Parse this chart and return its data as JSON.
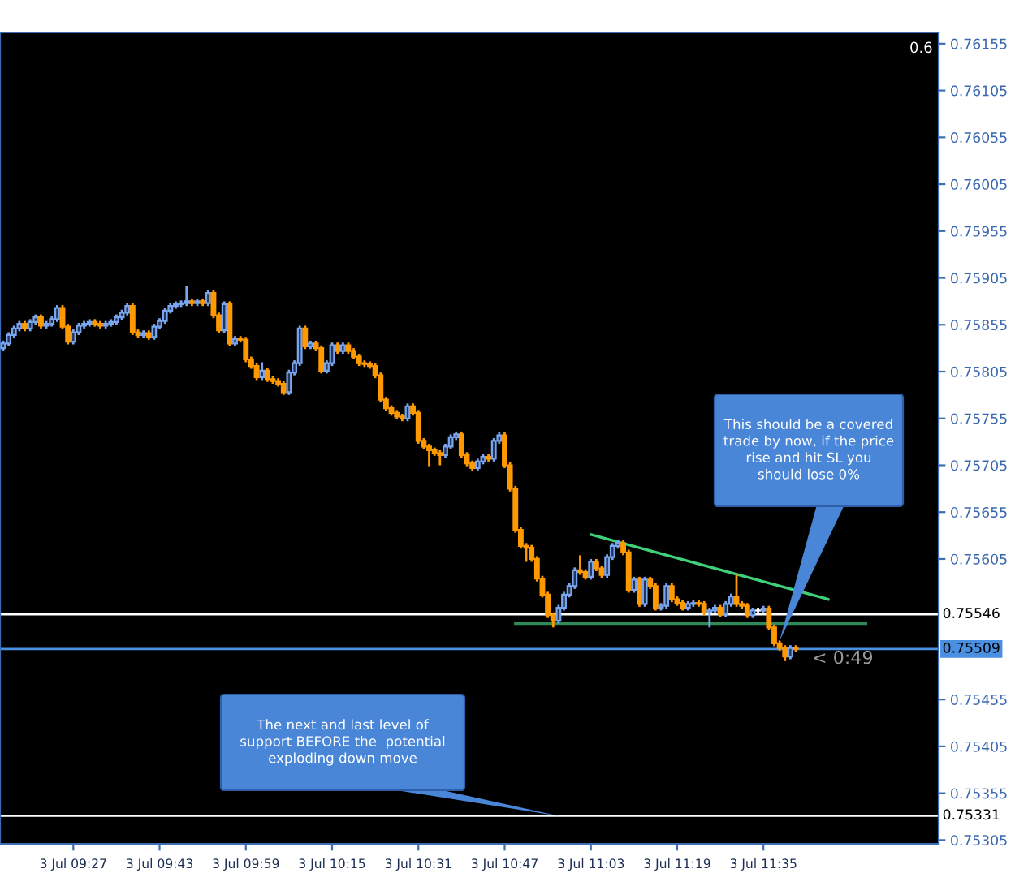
{
  "chart_data": {
    "type": "candlestick",
    "categories": [
      null,
      null,
      null,
      null,
      null,
      null,
      null,
      null,
      null,
      null,
      null,
      null,
      null,
      "3 Jul 09:27",
      null,
      null,
      null,
      null,
      null,
      null,
      null,
      null,
      null,
      null,
      null,
      null,
      null,
      null,
      null,
      "3 Jul 09:43",
      null,
      null,
      null,
      null,
      null,
      null,
      null,
      null,
      null,
      null,
      null,
      null,
      null,
      null,
      null,
      "3 Jul 09:59",
      null,
      null,
      null,
      null,
      null,
      null,
      null,
      null,
      null,
      null,
      null,
      null,
      null,
      null,
      null,
      "3 Jul 10:15",
      null,
      null,
      null,
      null,
      null,
      null,
      null,
      null,
      null,
      null,
      null,
      null,
      null,
      null,
      null,
      "3 Jul 10:31",
      null,
      null,
      null,
      null,
      null,
      null,
      null,
      null,
      null,
      null,
      null,
      null,
      null,
      null,
      null,
      "3 Jul 10:47",
      null,
      null,
      null,
      null,
      null,
      null,
      null,
      null,
      null,
      null,
      null,
      null,
      null,
      null,
      null,
      "3 Jul 11:03",
      null,
      null,
      null,
      null,
      null,
      null,
      null,
      null,
      null,
      null,
      null,
      null,
      null,
      null,
      null,
      "3 Jul 11:19",
      null,
      null,
      null,
      null,
      null,
      null,
      null,
      null,
      null,
      null,
      null,
      null,
      null,
      null,
      null,
      "3 Jul 11:35",
      null,
      null,
      null,
      null,
      null,
      null,
      null,
      null,
      null,
      null,
      null,
      null,
      null,
      null,
      null,
      null,
      null,
      null,
      null,
      null,
      null,
      null,
      null,
      null,
      null,
      null,
      null,
      null,
      null,
      null,
      null,
      null
    ],
    "ohlc": [
      [
        0.7583,
        0.75838,
        0.75827,
        0.75835
      ],
      [
        0.75835,
        0.75847,
        0.75832,
        0.75844
      ],
      [
        0.75844,
        0.75854,
        0.75841,
        0.75851
      ],
      [
        0.75851,
        0.75859,
        0.75848,
        0.75856
      ],
      [
        0.75856,
        0.75859,
        0.75848,
        0.75851
      ],
      [
        0.75851,
        0.75861,
        0.75848,
        0.75858
      ],
      [
        0.75858,
        0.75866,
        0.75855,
        0.75863
      ],
      [
        0.75863,
        0.75866,
        0.75851,
        0.75854
      ],
      [
        0.75854,
        0.75859,
        0.75851,
        0.75856
      ],
      [
        0.75856,
        0.75864,
        0.75853,
        0.75861
      ],
      [
        0.75861,
        0.75876,
        0.75858,
        0.75873
      ],
      [
        0.75873,
        0.75876,
        0.7585,
        0.75853
      ],
      [
        0.75853,
        0.75856,
        0.75834,
        0.75837
      ],
      [
        0.75837,
        0.7585,
        0.75834,
        0.75847
      ],
      [
        0.75847,
        0.75857,
        0.75844,
        0.75854
      ],
      [
        0.75854,
        0.75859,
        0.75851,
        0.75856
      ],
      [
        0.75856,
        0.75861,
        0.75853,
        0.75858
      ],
      [
        0.75858,
        0.75861,
        0.75853,
        0.75856
      ],
      [
        0.75856,
        0.75859,
        0.75851,
        0.75854
      ],
      [
        0.75854,
        0.75859,
        0.75851,
        0.75856
      ],
      [
        0.75856,
        0.75861,
        0.75853,
        0.75858
      ],
      [
        0.75858,
        0.75866,
        0.75855,
        0.75863
      ],
      [
        0.75863,
        0.75871,
        0.7586,
        0.75868
      ],
      [
        0.75868,
        0.75878,
        0.75865,
        0.75875
      ],
      [
        0.75875,
        0.75878,
        0.75844,
        0.75847
      ],
      [
        0.75847,
        0.7585,
        0.75841,
        0.75844
      ],
      [
        0.75844,
        0.75849,
        0.75841,
        0.75846
      ],
      [
        0.75846,
        0.75849,
        0.75839,
        0.75842
      ],
      [
        0.75842,
        0.75856,
        0.75839,
        0.75853
      ],
      [
        0.75853,
        0.75862,
        0.7585,
        0.75859
      ],
      [
        0.75859,
        0.75873,
        0.75856,
        0.7587
      ],
      [
        0.7587,
        0.75878,
        0.75867,
        0.75875
      ],
      [
        0.75875,
        0.7588,
        0.75872,
        0.75877
      ],
      [
        0.75877,
        0.75881,
        0.75874,
        0.75878
      ],
      [
        0.75878,
        0.75896,
        0.75875,
        0.7588
      ],
      [
        0.7588,
        0.75883,
        0.75875,
        0.75878
      ],
      [
        0.75878,
        0.75883,
        0.75875,
        0.7588
      ],
      [
        0.7588,
        0.75883,
        0.75875,
        0.75878
      ],
      [
        0.75878,
        0.75892,
        0.75875,
        0.75889
      ],
      [
        0.75889,
        0.75892,
        0.75862,
        0.75865
      ],
      [
        0.75865,
        0.75868,
        0.75846,
        0.75849
      ],
      [
        0.75849,
        0.7588,
        0.75846,
        0.75877
      ],
      [
        0.75877,
        0.7588,
        0.75832,
        0.75835
      ],
      [
        0.75835,
        0.75843,
        0.75832,
        0.7584
      ],
      [
        0.7584,
        0.75843,
        0.75836,
        0.75839
      ],
      [
        0.75839,
        0.75842,
        0.75815,
        0.75818
      ],
      [
        0.75818,
        0.75821,
        0.75808,
        0.75811
      ],
      [
        0.75811,
        0.75814,
        0.75796,
        0.75799
      ],
      [
        0.75799,
        0.75815,
        0.75796,
        0.75806
      ],
      [
        0.75806,
        0.75809,
        0.75794,
        0.75797
      ],
      [
        0.75797,
        0.758,
        0.75792,
        0.75795
      ],
      [
        0.75795,
        0.75798,
        0.75789,
        0.75792
      ],
      [
        0.75792,
        0.75795,
        0.7578,
        0.75783
      ],
      [
        0.75783,
        0.75807,
        0.7578,
        0.75804
      ],
      [
        0.75804,
        0.75817,
        0.75801,
        0.75814
      ],
      [
        0.75814,
        0.75854,
        0.75811,
        0.75851
      ],
      [
        0.75851,
        0.75854,
        0.75829,
        0.75832
      ],
      [
        0.75832,
        0.75838,
        0.75829,
        0.75835
      ],
      [
        0.75835,
        0.75838,
        0.75827,
        0.7583
      ],
      [
        0.7583,
        0.75833,
        0.75803,
        0.75806
      ],
      [
        0.75806,
        0.75817,
        0.75803,
        0.75814
      ],
      [
        0.75814,
        0.75836,
        0.75811,
        0.75833
      ],
      [
        0.75833,
        0.75836,
        0.75824,
        0.75827
      ],
      [
        0.75827,
        0.75836,
        0.75824,
        0.75833
      ],
      [
        0.75833,
        0.75836,
        0.75824,
        0.75827
      ],
      [
        0.75827,
        0.7583,
        0.75818,
        0.75821
      ],
      [
        0.75821,
        0.75824,
        0.75811,
        0.75814
      ],
      [
        0.75814,
        0.75817,
        0.7581,
        0.75813
      ],
      [
        0.75813,
        0.75816,
        0.75808,
        0.75811
      ],
      [
        0.75811,
        0.75814,
        0.75798,
        0.75801
      ],
      [
        0.75801,
        0.75804,
        0.75772,
        0.75775
      ],
      [
        0.75775,
        0.75778,
        0.75763,
        0.75766
      ],
      [
        0.75766,
        0.75769,
        0.75758,
        0.75761
      ],
      [
        0.75761,
        0.75764,
        0.75754,
        0.75757
      ],
      [
        0.75757,
        0.7576,
        0.75752,
        0.75755
      ],
      [
        0.75755,
        0.75771,
        0.75752,
        0.75768
      ],
      [
        0.75768,
        0.75771,
        0.75758,
        0.75761
      ],
      [
        0.75761,
        0.75764,
        0.75728,
        0.75731
      ],
      [
        0.75731,
        0.75734,
        0.75722,
        0.75725
      ],
      [
        0.75725,
        0.75728,
        0.75704,
        0.75721
      ],
      [
        0.75721,
        0.75724,
        0.75715,
        0.75718
      ],
      [
        0.75718,
        0.75721,
        0.75705,
        0.75716
      ],
      [
        0.75716,
        0.75728,
        0.75713,
        0.75725
      ],
      [
        0.75725,
        0.75738,
        0.75722,
        0.75735
      ],
      [
        0.75735,
        0.75741,
        0.75732,
        0.75738
      ],
      [
        0.75738,
        0.75741,
        0.75713,
        0.75716
      ],
      [
        0.75716,
        0.75719,
        0.75704,
        0.75707
      ],
      [
        0.75707,
        0.7571,
        0.75699,
        0.75702
      ],
      [
        0.75702,
        0.75712,
        0.75699,
        0.75709
      ],
      [
        0.75709,
        0.75717,
        0.75706,
        0.75714
      ],
      [
        0.75714,
        0.75717,
        0.75709,
        0.75712
      ],
      [
        0.75712,
        0.75734,
        0.75709,
        0.75731
      ],
      [
        0.75731,
        0.7574,
        0.75728,
        0.75737
      ],
      [
        0.75737,
        0.7574,
        0.75702,
        0.75705
      ],
      [
        0.75705,
        0.75708,
        0.75677,
        0.7568
      ],
      [
        0.7568,
        0.75683,
        0.75633,
        0.75636
      ],
      [
        0.75636,
        0.75639,
        0.75616,
        0.75619
      ],
      [
        0.75619,
        0.75622,
        0.75602,
        0.75617
      ],
      [
        0.75617,
        0.7562,
        0.75602,
        0.75605
      ],
      [
        0.75605,
        0.75608,
        0.75581,
        0.75584
      ],
      [
        0.75584,
        0.75587,
        0.75564,
        0.75567
      ],
      [
        0.75567,
        0.7557,
        0.75542,
        0.75545
      ],
      [
        0.75545,
        0.75548,
        0.75532,
        0.75539
      ],
      [
        0.75539,
        0.75556,
        0.75536,
        0.75553
      ],
      [
        0.75553,
        0.7557,
        0.7555,
        0.75567
      ],
      [
        0.75567,
        0.75579,
        0.75564,
        0.75576
      ],
      [
        0.75576,
        0.75596,
        0.75573,
        0.75593
      ],
      [
        0.75593,
        0.75609,
        0.75588,
        0.75591
      ],
      [
        0.75591,
        0.75594,
        0.75583,
        0.75586
      ],
      [
        0.75586,
        0.75605,
        0.75583,
        0.75602
      ],
      [
        0.75602,
        0.75605,
        0.75592,
        0.75595
      ],
      [
        0.75595,
        0.75598,
        0.75585,
        0.75588
      ],
      [
        0.75588,
        0.7561,
        0.75585,
        0.75607
      ],
      [
        0.75607,
        0.75622,
        0.75604,
        0.75619
      ],
      [
        0.75619,
        0.75625,
        0.75616,
        0.75622
      ],
      [
        0.75622,
        0.75625,
        0.75609,
        0.75612
      ],
      [
        0.75612,
        0.75615,
        0.75569,
        0.75572
      ],
      [
        0.75572,
        0.75586,
        0.75569,
        0.75583
      ],
      [
        0.75583,
        0.75586,
        0.75554,
        0.75557
      ],
      [
        0.75557,
        0.75586,
        0.75554,
        0.75583
      ],
      [
        0.75583,
        0.75586,
        0.75573,
        0.75576
      ],
      [
        0.75576,
        0.75579,
        0.7555,
        0.75553
      ],
      [
        0.75553,
        0.75558,
        0.7555,
        0.75555
      ],
      [
        0.75555,
        0.75579,
        0.75552,
        0.75576
      ],
      [
        0.75576,
        0.75579,
        0.75559,
        0.75562
      ],
      [
        0.75562,
        0.75565,
        0.75555,
        0.75558
      ],
      [
        0.75558,
        0.75561,
        0.7555,
        0.75553
      ],
      [
        0.75553,
        0.7556,
        0.7555,
        0.75557
      ],
      [
        0.75557,
        0.75561,
        0.75554,
        0.75558
      ],
      [
        0.75558,
        0.75561,
        0.75554,
        0.75557
      ],
      [
        0.75557,
        0.7556,
        0.75545,
        0.75548
      ],
      [
        0.75548,
        0.75553,
        0.75532,
        0.7555
      ],
      [
        0.7555,
        0.75556,
        0.75547,
        0.75553
      ],
      [
        0.75553,
        0.75556,
        0.75543,
        0.75546
      ],
      [
        0.75546,
        0.7556,
        0.75543,
        0.75557
      ],
      [
        0.75557,
        0.75568,
        0.75554,
        0.75565
      ],
      [
        0.75565,
        0.75588,
        0.75554,
        0.75557
      ],
      [
        0.75557,
        0.7556,
        0.75552,
        0.75555
      ],
      [
        0.75555,
        0.75558,
        0.75542,
        0.75545
      ],
      [
        0.75545,
        0.75553,
        0.75542,
        0.7555
      ],
      [
        0.7555,
        0.75553,
        0.75547,
        0.7555
      ],
      [
        0.7555,
        0.75555,
        0.75547,
        0.75552
      ],
      [
        0.75552,
        0.75555,
        0.75529,
        0.75532
      ],
      [
        0.75532,
        0.75535,
        0.75512,
        0.75515
      ],
      [
        0.75515,
        0.75518,
        0.75507,
        0.7551
      ],
      [
        0.7551,
        0.75513,
        0.75496,
        0.75501
      ],
      [
        0.75501,
        0.75513,
        0.75498,
        0.7551
      ],
      [
        0.7551,
        0.75513,
        0.75506,
        0.75509
      ],
      null,
      null,
      null,
      null,
      null,
      null,
      null,
      null,
      null,
      null,
      null,
      null,
      null,
      null,
      null,
      null,
      null,
      null,
      null,
      null,
      null,
      null,
      null,
      null,
      null,
      null
    ],
    "series": [
      {
        "type": "line",
        "color": "#3fd07a",
        "values": [
          null,
          null,
          null,
          null,
          null,
          null,
          null,
          null,
          null,
          null,
          null,
          null,
          null,
          null,
          null,
          null,
          null,
          null,
          null,
          null,
          null,
          null,
          null,
          null,
          null,
          null,
          null,
          null,
          null,
          null,
          null,
          null,
          null,
          null,
          null,
          null,
          null,
          null,
          null,
          null,
          null,
          null,
          null,
          null,
          null,
          null,
          null,
          null,
          null,
          null,
          null,
          null,
          null,
          null,
          null,
          null,
          null,
          null,
          null,
          null,
          null,
          null,
          null,
          null,
          null,
          null,
          null,
          null,
          null,
          null,
          null,
          null,
          null,
          null,
          null,
          null,
          null,
          null,
          null,
          null,
          null,
          null,
          null,
          null,
          null,
          null,
          null,
          null,
          null,
          null,
          null,
          null,
          null,
          null,
          null,
          null,
          null,
          null,
          null,
          null,
          null,
          null,
          null,
          null,
          null,
          null,
          null,
          null,
          null,
          0.75631,
          null,
          null,
          null,
          null,
          null,
          null,
          null,
          null,
          null,
          null,
          null,
          null,
          null,
          null,
          null,
          null,
          null,
          null,
          null,
          null,
          null,
          null,
          null,
          null,
          null,
          null,
          null,
          null,
          null,
          null,
          null,
          null,
          null,
          null,
          null,
          null,
          null,
          null,
          null,
          null,
          null,
          null,
          null,
          0.75562,
          null,
          null,
          null,
          null,
          null,
          null,
          null,
          null,
          null,
          null,
          null,
          null,
          null,
          null,
          null,
          null,
          null,
          null,
          null,
          null
        ]
      },
      {
        "type": "line",
        "color": "#2e8b57",
        "values": [
          null,
          null,
          null,
          null,
          null,
          null,
          null,
          null,
          null,
          null,
          null,
          null,
          null,
          null,
          null,
          null,
          null,
          null,
          null,
          null,
          null,
          null,
          null,
          null,
          null,
          null,
          null,
          null,
          null,
          null,
          null,
          null,
          null,
          null,
          null,
          null,
          null,
          null,
          null,
          null,
          null,
          null,
          null,
          null,
          null,
          null,
          null,
          null,
          null,
          null,
          null,
          null,
          null,
          null,
          null,
          null,
          null,
          null,
          null,
          null,
          null,
          null,
          null,
          null,
          null,
          null,
          null,
          null,
          null,
          null,
          null,
          null,
          null,
          null,
          null,
          null,
          null,
          null,
          null,
          null,
          null,
          null,
          null,
          null,
          null,
          null,
          null,
          null,
          null,
          null,
          null,
          null,
          null,
          null,
          null,
          0.75536,
          null,
          null,
          null,
          null,
          null,
          null,
          null,
          null,
          null,
          null,
          null,
          null,
          null,
          null,
          null,
          null,
          null,
          null,
          null,
          null,
          null,
          null,
          null,
          null,
          null,
          null,
          null,
          null,
          null,
          null,
          null,
          null,
          null,
          null,
          null,
          null,
          null,
          null,
          null,
          null,
          null,
          null,
          null,
          null,
          null,
          null,
          null,
          null,
          null,
          null,
          null,
          null,
          null,
          null,
          null,
          null,
          null,
          null,
          null,
          null,
          null,
          null,
          null,
          null,
          0.75536,
          null,
          null,
          null,
          null,
          null,
          null,
          null,
          null,
          null,
          null,
          null,
          null,
          null
        ]
      }
    ],
    "ylim": [
      0.75301,
      0.76167
    ],
    "yticks": [
      0.76155,
      0.76105,
      0.76055,
      0.76005,
      0.75955,
      0.75905,
      0.75855,
      0.75805,
      0.75755,
      0.75705,
      0.75655,
      0.75605,
      0.75455,
      0.75405,
      0.75355,
      0.75305
    ],
    "ref_lines": [
      {
        "axis": "y",
        "value": 0.75546,
        "label": "0.75546",
        "color": "#ffffff"
      },
      {
        "axis": "y",
        "value": 0.75509,
        "label": "0.75509",
        "color": "#4a90e2"
      },
      {
        "axis": "y",
        "value": 0.75331,
        "label": "0.75331",
        "color": "#ffffff"
      }
    ],
    "annotations": [
      "This should be a covered\ntrade by now, if the price\nrise and hit SL you\nshould lose 0%",
      "The next and last level of\nsupport BEFORE the  potential\nexploding down move",
      "< 0:49",
      "0.6"
    ],
    "grid": false,
    "legend": false
  }
}
